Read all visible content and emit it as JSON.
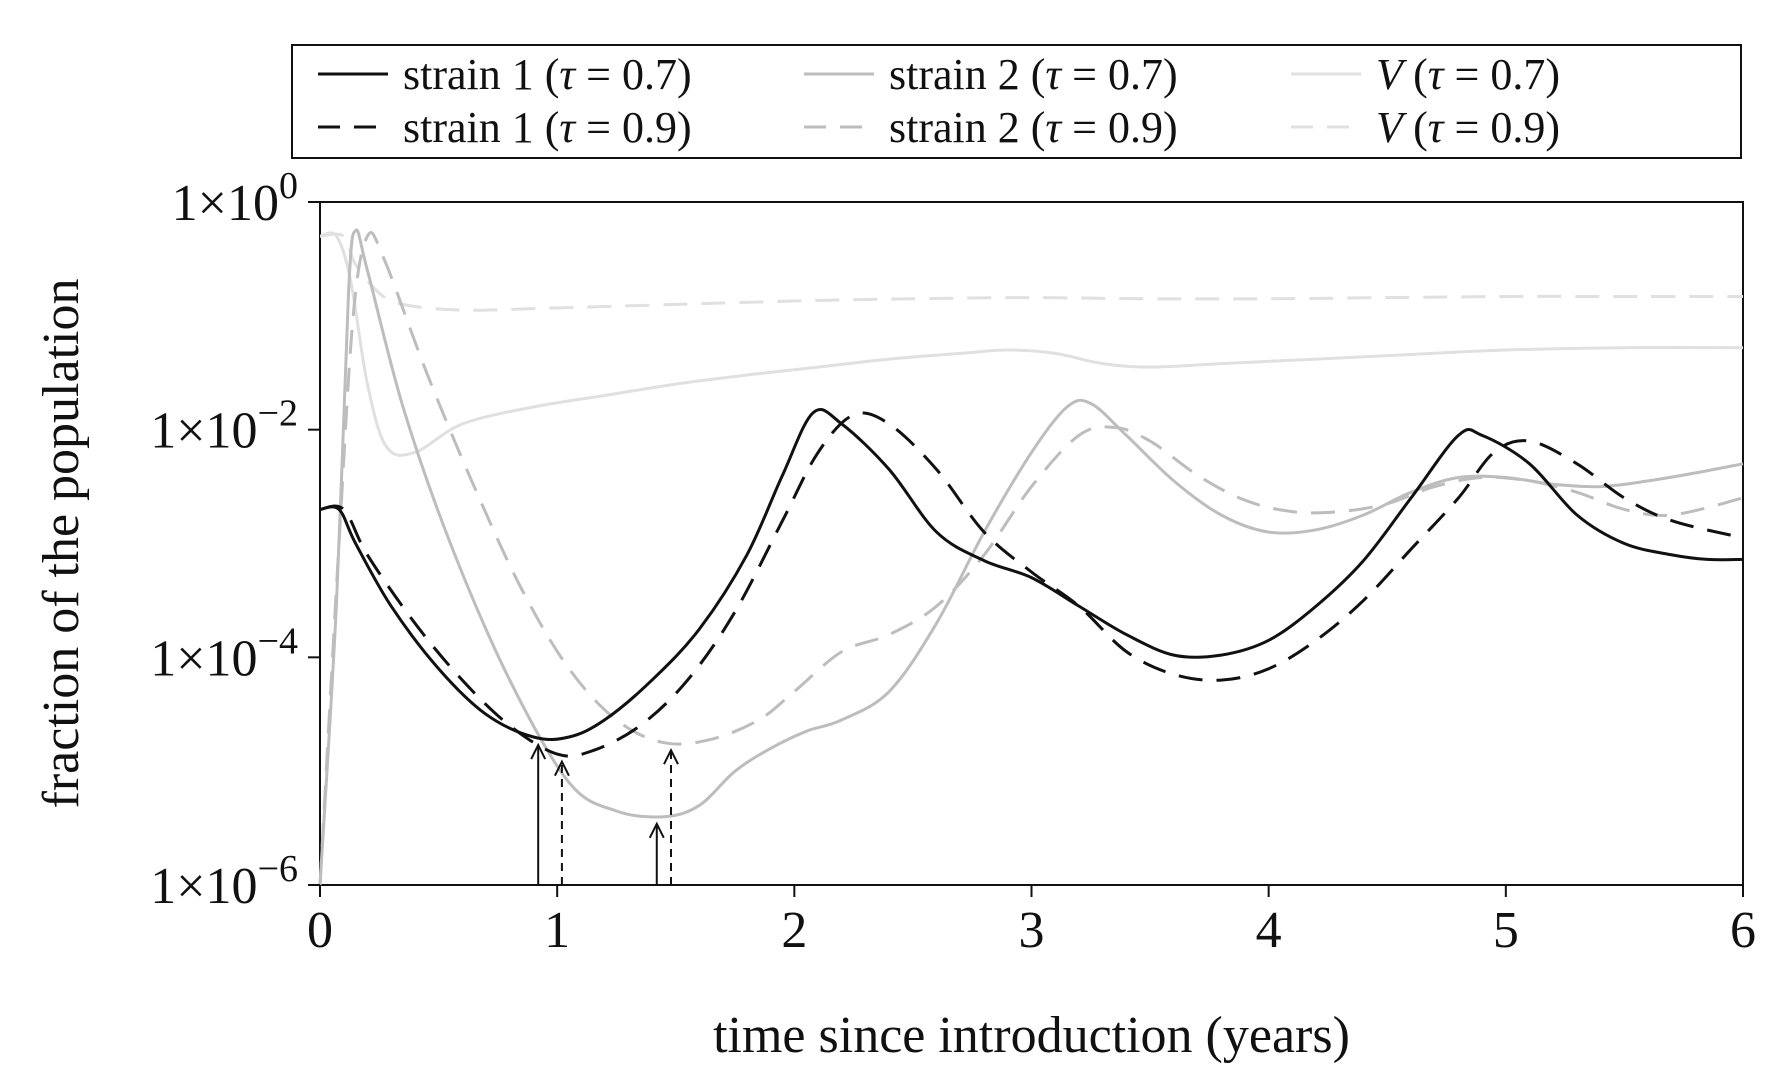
{
  "chart_data": {
    "type": "line",
    "title": "",
    "xlabel": "time since introduction (years)",
    "ylabel": "fraction of the population",
    "xlim": [
      0,
      6
    ],
    "ylim_log10": [
      -6,
      0
    ],
    "yscale": "log",
    "x_ticks": [
      0,
      1,
      2,
      3,
      4,
      5,
      6
    ],
    "x_tick_labels": [
      "0",
      "1",
      "2",
      "3",
      "4",
      "5",
      "6"
    ],
    "y_ticks_log10": [
      0,
      -2,
      -4,
      -6
    ],
    "y_tick_labels": [
      {
        "mantissa": "1×10",
        "exponent": "0"
      },
      {
        "mantissa": "1×10",
        "exponent": "−2"
      },
      {
        "mantissa": "1×10",
        "exponent": "−4"
      },
      {
        "mantissa": "1×10",
        "exponent": "−6"
      }
    ],
    "legend": {
      "location": "top (outside plot)",
      "entries": [
        {
          "prefix": "strain 1",
          "tau": "0.7",
          "series": "s1_07"
        },
        {
          "prefix": "strain 2",
          "tau": "0.7",
          "series": "s2_07"
        },
        {
          "prefix": "V",
          "tau": "0.7",
          "series": "v_07",
          "italic": true
        },
        {
          "prefix": "strain 1",
          "tau": "0.9",
          "series": "s1_09"
        },
        {
          "prefix": "strain 2",
          "tau": "0.9",
          "series": "s2_09"
        },
        {
          "prefix": "V",
          "tau": "0.9",
          "series": "v_09",
          "italic": true
        }
      ]
    },
    "series": [
      {
        "id": "s1_07",
        "name": "strain 1 (τ = 0.7)",
        "color": "#111111",
        "dash": "solid",
        "points_log10": [
          [
            0,
            -2.7
          ],
          [
            0.08,
            -2.7
          ],
          [
            0.15,
            -3.0
          ],
          [
            0.3,
            -3.55
          ],
          [
            0.5,
            -4.1
          ],
          [
            0.7,
            -4.5
          ],
          [
            0.9,
            -4.7
          ],
          [
            1.05,
            -4.7
          ],
          [
            1.2,
            -4.55
          ],
          [
            1.4,
            -4.2
          ],
          [
            1.6,
            -3.75
          ],
          [
            1.8,
            -3.1
          ],
          [
            1.95,
            -2.4
          ],
          [
            2.08,
            -1.85
          ],
          [
            2.2,
            -1.95
          ],
          [
            2.4,
            -2.35
          ],
          [
            2.6,
            -2.9
          ],
          [
            2.8,
            -3.15
          ],
          [
            3.0,
            -3.3
          ],
          [
            3.2,
            -3.55
          ],
          [
            3.4,
            -3.8
          ],
          [
            3.6,
            -3.98
          ],
          [
            3.8,
            -3.98
          ],
          [
            4.0,
            -3.85
          ],
          [
            4.2,
            -3.55
          ],
          [
            4.4,
            -3.15
          ],
          [
            4.6,
            -2.6
          ],
          [
            4.8,
            -2.05
          ],
          [
            4.9,
            -2.05
          ],
          [
            5.1,
            -2.3
          ],
          [
            5.3,
            -2.75
          ],
          [
            5.5,
            -3.0
          ],
          [
            5.7,
            -3.1
          ],
          [
            5.85,
            -3.14
          ],
          [
            6.0,
            -3.14
          ]
        ]
      },
      {
        "id": "s1_09",
        "name": "strain 1 (τ = 0.9)",
        "color": "#111111",
        "dash": "dashed",
        "points_log10": [
          [
            0,
            -2.7
          ],
          [
            0.1,
            -2.7
          ],
          [
            0.2,
            -3.1
          ],
          [
            0.4,
            -3.7
          ],
          [
            0.6,
            -4.2
          ],
          [
            0.8,
            -4.6
          ],
          [
            1.0,
            -4.85
          ],
          [
            1.15,
            -4.82
          ],
          [
            1.35,
            -4.6
          ],
          [
            1.55,
            -4.2
          ],
          [
            1.75,
            -3.6
          ],
          [
            1.95,
            -2.8
          ],
          [
            2.1,
            -2.2
          ],
          [
            2.25,
            -1.87
          ],
          [
            2.4,
            -1.95
          ],
          [
            2.6,
            -2.35
          ],
          [
            2.8,
            -2.9
          ],
          [
            3.0,
            -3.25
          ],
          [
            3.2,
            -3.55
          ],
          [
            3.4,
            -3.95
          ],
          [
            3.6,
            -4.15
          ],
          [
            3.8,
            -4.2
          ],
          [
            4.0,
            -4.1
          ],
          [
            4.2,
            -3.85
          ],
          [
            4.4,
            -3.5
          ],
          [
            4.6,
            -3.05
          ],
          [
            4.8,
            -2.6
          ],
          [
            4.95,
            -2.2
          ],
          [
            5.1,
            -2.1
          ],
          [
            5.3,
            -2.3
          ],
          [
            5.5,
            -2.6
          ],
          [
            5.7,
            -2.8
          ],
          [
            6.0,
            -2.95
          ]
        ]
      },
      {
        "id": "s2_07",
        "name": "strain 2 (τ = 0.7)",
        "color": "#bdbdbd",
        "dash": "solid",
        "points_log10": [
          [
            0,
            -6.0
          ],
          [
            0.07,
            -3.5
          ],
          [
            0.12,
            -0.8
          ],
          [
            0.15,
            -0.25
          ],
          [
            0.2,
            -0.6
          ],
          [
            0.35,
            -1.8
          ],
          [
            0.55,
            -3.0
          ],
          [
            0.8,
            -4.2
          ],
          [
            1.05,
            -5.1
          ],
          [
            1.25,
            -5.35
          ],
          [
            1.45,
            -5.4
          ],
          [
            1.6,
            -5.3
          ],
          [
            1.75,
            -5.0
          ],
          [
            1.9,
            -4.8
          ],
          [
            2.05,
            -4.65
          ],
          [
            2.2,
            -4.55
          ],
          [
            2.4,
            -4.3
          ],
          [
            2.6,
            -3.7
          ],
          [
            2.8,
            -2.9
          ],
          [
            3.0,
            -2.2
          ],
          [
            3.15,
            -1.8
          ],
          [
            3.25,
            -1.77
          ],
          [
            3.4,
            -2.05
          ],
          [
            3.6,
            -2.45
          ],
          [
            3.8,
            -2.75
          ],
          [
            4.0,
            -2.9
          ],
          [
            4.2,
            -2.88
          ],
          [
            4.4,
            -2.75
          ],
          [
            4.6,
            -2.55
          ],
          [
            4.8,
            -2.42
          ],
          [
            5.0,
            -2.42
          ],
          [
            5.2,
            -2.48
          ],
          [
            5.4,
            -2.5
          ],
          [
            5.6,
            -2.45
          ],
          [
            5.8,
            -2.38
          ],
          [
            6.0,
            -2.3
          ]
        ]
      },
      {
        "id": "s2_09",
        "name": "strain 2 (τ = 0.9)",
        "color": "#bdbdbd",
        "dash": "dashed",
        "points_log10": [
          [
            0,
            -6.0
          ],
          [
            0.08,
            -3.0
          ],
          [
            0.14,
            -1.0
          ],
          [
            0.2,
            -0.3
          ],
          [
            0.27,
            -0.5
          ],
          [
            0.45,
            -1.5
          ],
          [
            0.65,
            -2.5
          ],
          [
            0.85,
            -3.4
          ],
          [
            1.05,
            -4.1
          ],
          [
            1.25,
            -4.55
          ],
          [
            1.45,
            -4.75
          ],
          [
            1.65,
            -4.72
          ],
          [
            1.85,
            -4.55
          ],
          [
            2.0,
            -4.3
          ],
          [
            2.2,
            -3.95
          ],
          [
            2.4,
            -3.8
          ],
          [
            2.6,
            -3.55
          ],
          [
            2.8,
            -3.1
          ],
          [
            3.0,
            -2.5
          ],
          [
            3.2,
            -2.05
          ],
          [
            3.35,
            -1.98
          ],
          [
            3.5,
            -2.1
          ],
          [
            3.7,
            -2.4
          ],
          [
            3.9,
            -2.62
          ],
          [
            4.1,
            -2.72
          ],
          [
            4.3,
            -2.72
          ],
          [
            4.5,
            -2.65
          ],
          [
            4.7,
            -2.5
          ],
          [
            4.9,
            -2.42
          ],
          [
            5.1,
            -2.45
          ],
          [
            5.3,
            -2.55
          ],
          [
            5.5,
            -2.7
          ],
          [
            5.7,
            -2.75
          ],
          [
            6.0,
            -2.6
          ]
        ]
      },
      {
        "id": "v_07",
        "name": "V (τ = 0.7)",
        "color": "#e0e0e0",
        "dash": "solid",
        "points_log10": [
          [
            0,
            -0.3
          ],
          [
            0.07,
            -0.3
          ],
          [
            0.13,
            -0.7
          ],
          [
            0.2,
            -1.6
          ],
          [
            0.28,
            -2.15
          ],
          [
            0.4,
            -2.2
          ],
          [
            0.6,
            -1.95
          ],
          [
            0.9,
            -1.8
          ],
          [
            1.2,
            -1.7
          ],
          [
            1.5,
            -1.6
          ],
          [
            1.8,
            -1.52
          ],
          [
            2.1,
            -1.45
          ],
          [
            2.4,
            -1.38
          ],
          [
            2.7,
            -1.33
          ],
          [
            2.9,
            -1.3
          ],
          [
            3.1,
            -1.33
          ],
          [
            3.3,
            -1.42
          ],
          [
            3.5,
            -1.45
          ],
          [
            3.8,
            -1.42
          ],
          [
            4.2,
            -1.38
          ],
          [
            4.6,
            -1.34
          ],
          [
            5.0,
            -1.3
          ],
          [
            5.5,
            -1.28
          ],
          [
            6.0,
            -1.28
          ]
        ]
      },
      {
        "id": "v_09",
        "name": "V (τ = 0.9)",
        "color": "#e0e0e0",
        "dash": "dashed",
        "points_log10": [
          [
            0,
            -0.3
          ],
          [
            0.1,
            -0.3
          ],
          [
            0.15,
            -0.55
          ],
          [
            0.25,
            -0.8
          ],
          [
            0.35,
            -0.9
          ],
          [
            0.6,
            -0.95
          ],
          [
            1.0,
            -0.93
          ],
          [
            1.5,
            -0.9
          ],
          [
            2.0,
            -0.87
          ],
          [
            2.5,
            -0.85
          ],
          [
            3.0,
            -0.84
          ],
          [
            3.5,
            -0.85
          ],
          [
            4.0,
            -0.85
          ],
          [
            4.5,
            -0.84
          ],
          [
            5.0,
            -0.83
          ],
          [
            5.5,
            -0.83
          ],
          [
            6.0,
            -0.83
          ]
        ]
      }
    ],
    "annotations": [
      {
        "type": "arrow",
        "x": 0.92,
        "series": "s1_07",
        "style": "solid",
        "note": "minimum of strain 1 (τ = 0.7)"
      },
      {
        "type": "arrow",
        "x": 1.02,
        "series": "s1_09",
        "style": "dashed",
        "note": "minimum of strain 1 (τ = 0.9)"
      },
      {
        "type": "arrow",
        "x": 1.42,
        "series": "s2_07",
        "style": "solid",
        "note": "minimum of strain 2 (τ = 0.7)"
      },
      {
        "type": "arrow",
        "x": 1.48,
        "series": "s2_09",
        "style": "dashed",
        "note": "minimum of strain 2 (τ = 0.9)"
      }
    ]
  }
}
